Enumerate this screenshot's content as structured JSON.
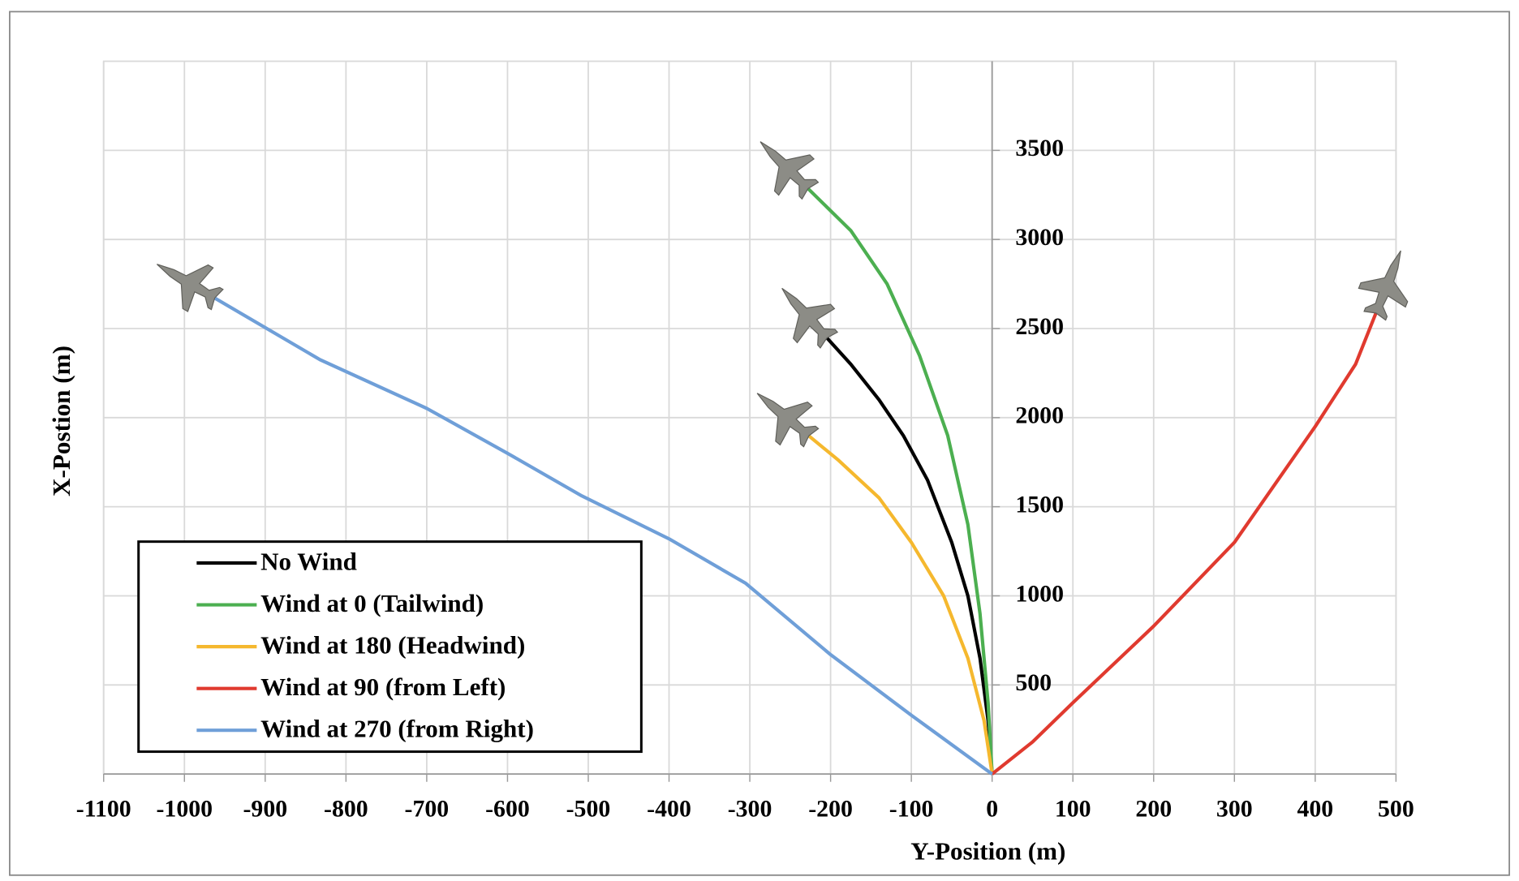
{
  "chart_data": {
    "type": "line",
    "x_label": "Y-Position (m)",
    "y_label": "X-Postion (m)",
    "xlim": [
      -1100,
      500
    ],
    "ylim": [
      0,
      4000
    ],
    "xticks": [
      -1100,
      -1000,
      -900,
      -800,
      -700,
      -600,
      -500,
      -400,
      -300,
      -200,
      -100,
      0,
      100,
      200,
      300,
      400,
      500
    ],
    "yticks": [
      500,
      1000,
      1500,
      2000,
      2500,
      3000,
      3500
    ],
    "grid": true,
    "legend": "lower left",
    "series": [
      {
        "name": "No Wind",
        "color": "#000000",
        "x": [
          0,
          -5,
          -15,
          -30,
          -50,
          -80,
          -110,
          -140,
          -175,
          -215
        ],
        "values": [
          0,
          300,
          650,
          1000,
          1300,
          1650,
          1900,
          2100,
          2300,
          2500
        ]
      },
      {
        "name": "Wind at 0 (Tailwind)",
        "color": "#4caf50",
        "x": [
          0,
          -5,
          -15,
          -30,
          -55,
          -90,
          -130,
          -175,
          -239
        ],
        "values": [
          0,
          400,
          900,
          1400,
          1900,
          2350,
          2750,
          3050,
          3335
        ]
      },
      {
        "name": "Wind at 180 (Headwind)",
        "color": "#f5b82e",
        "x": [
          0,
          -10,
          -30,
          -60,
          -100,
          -140,
          -190,
          -239
        ],
        "values": [
          0,
          300,
          650,
          1000,
          1300,
          1550,
          1760,
          1943
        ]
      },
      {
        "name": "Wind at 90 (from Left)",
        "color": "#e03a2f",
        "x": [
          0,
          50,
          100,
          200,
          300,
          400,
          450,
          481
        ],
        "values": [
          0,
          180,
          400,
          830,
          1300,
          1950,
          2300,
          2653
        ]
      },
      {
        "name": "Wind at 270 (from Right)",
        "color": "#6f9fd8",
        "x": [
          0,
          -100,
          -200,
          -305,
          -400,
          -508,
          -600,
          -700,
          -832,
          -976
        ],
        "values": [
          0,
          330,
          670,
          1070,
          1320,
          1561,
          1800,
          2052,
          2325,
          2707
        ]
      }
    ]
  }
}
